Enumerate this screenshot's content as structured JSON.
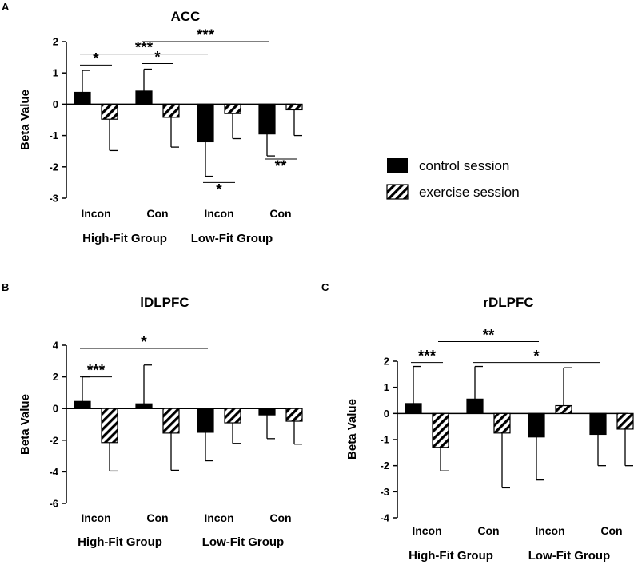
{
  "colors": {
    "control": "#000000",
    "exercise_stripe": "#000000",
    "exercise_bg": "#ffffff",
    "axis": "#000000"
  },
  "legend": {
    "items": [
      {
        "label": "control session",
        "pattern": "solid"
      },
      {
        "label": "exercise session",
        "pattern": "hatched"
      }
    ]
  },
  "chart_data": [
    {
      "panel": "A",
      "type": "bar",
      "title": "ACC",
      "ylabel": "Beta Value",
      "xlabel": "",
      "ylim": [
        -3,
        2
      ],
      "yticks": [
        -3,
        -2,
        -1,
        0,
        1,
        2
      ],
      "categories": [
        "Incon",
        "Con",
        "Incon",
        "Con"
      ],
      "groups": [
        {
          "label": "High-Fit Group",
          "categories": [
            0,
            1
          ]
        },
        {
          "label": "Low-Fit Group",
          "categories": [
            2,
            3
          ]
        }
      ],
      "series": [
        {
          "name": "control session",
          "values": [
            0.38,
            0.42,
            -1.2,
            -0.95
          ],
          "errors": [
            0.7,
            0.7,
            1.1,
            0.7
          ]
        },
        {
          "name": "exercise session",
          "values": [
            -0.48,
            -0.42,
            -0.3,
            -0.18
          ],
          "errors": [
            1.0,
            0.95,
            0.8,
            0.82
          ]
        }
      ],
      "significance": [
        {
          "label": "*",
          "from": [
            0,
            0
          ],
          "to": [
            0,
            1
          ],
          "y": 1.25
        },
        {
          "label": "*",
          "from": [
            1,
            0
          ],
          "to": [
            1,
            1
          ],
          "y": 1.3
        },
        {
          "label": "***",
          "from": [
            0,
            0
          ],
          "to": [
            2,
            0
          ],
          "y": 1.6
        },
        {
          "label": "***",
          "from": [
            1,
            0
          ],
          "to": [
            3,
            0
          ],
          "y": 2.0
        },
        {
          "label": "*",
          "from": [
            2,
            0
          ],
          "to": [
            2,
            1
          ],
          "y": -2.5
        },
        {
          "label": "**",
          "from": [
            3,
            0
          ],
          "to": [
            3,
            1
          ],
          "y": -1.75
        }
      ]
    },
    {
      "panel": "B",
      "type": "bar",
      "title": "lDLPFC",
      "ylabel": "Beta Value",
      "xlabel": "",
      "ylim": [
        -6,
        4
      ],
      "yticks": [
        -6,
        -4,
        -2,
        0,
        2,
        4
      ],
      "categories": [
        "Incon",
        "Con",
        "Incon",
        "Con"
      ],
      "groups": [
        {
          "label": "High-Fit Group",
          "categories": [
            0,
            1
          ]
        },
        {
          "label": "Low-Fit Group",
          "categories": [
            2,
            3
          ]
        }
      ],
      "series": [
        {
          "name": "control session",
          "values": [
            0.45,
            0.3,
            -1.5,
            -0.4
          ],
          "errors": [
            1.55,
            2.45,
            1.8,
            1.5
          ]
        },
        {
          "name": "exercise session",
          "values": [
            -2.15,
            -1.55,
            -0.9,
            -0.8
          ],
          "errors": [
            1.8,
            2.35,
            1.3,
            1.45
          ]
        }
      ],
      "significance": [
        {
          "label": "***",
          "from": [
            0,
            0
          ],
          "to": [
            0,
            1
          ],
          "y": 2.0
        },
        {
          "label": "*",
          "from": [
            0,
            0
          ],
          "to": [
            2,
            0
          ],
          "y": 3.8
        }
      ]
    },
    {
      "panel": "C",
      "type": "bar",
      "title": "rDLPFC",
      "ylabel": "Beta Value",
      "xlabel": "",
      "ylim": [
        -4,
        2
      ],
      "yticks": [
        -4,
        -3,
        -2,
        -1,
        0,
        1,
        2
      ],
      "categories": [
        "Incon",
        "Con",
        "Incon",
        "Con"
      ],
      "groups": [
        {
          "label": "High-Fit Group",
          "categories": [
            0,
            1
          ]
        },
        {
          "label": "Low-Fit Group",
          "categories": [
            2,
            3
          ]
        }
      ],
      "series": [
        {
          "name": "control session",
          "values": [
            0.38,
            0.55,
            -0.9,
            -0.8
          ],
          "errors": [
            1.42,
            1.25,
            1.65,
            1.2
          ]
        },
        {
          "name": "exercise session",
          "values": [
            -1.3,
            -0.75,
            0.3,
            -0.6
          ],
          "errors": [
            0.9,
            2.1,
            1.45,
            1.4
          ]
        }
      ],
      "significance": [
        {
          "label": "***",
          "from": [
            0,
            0
          ],
          "to": [
            0,
            1
          ],
          "y": 1.95
        },
        {
          "label": "**",
          "from": [
            0,
            1
          ],
          "to": [
            2,
            0
          ],
          "y": 2.75
        },
        {
          "label": "*",
          "from": [
            1,
            0
          ],
          "to": [
            3,
            0
          ],
          "y": 1.95
        }
      ]
    }
  ]
}
